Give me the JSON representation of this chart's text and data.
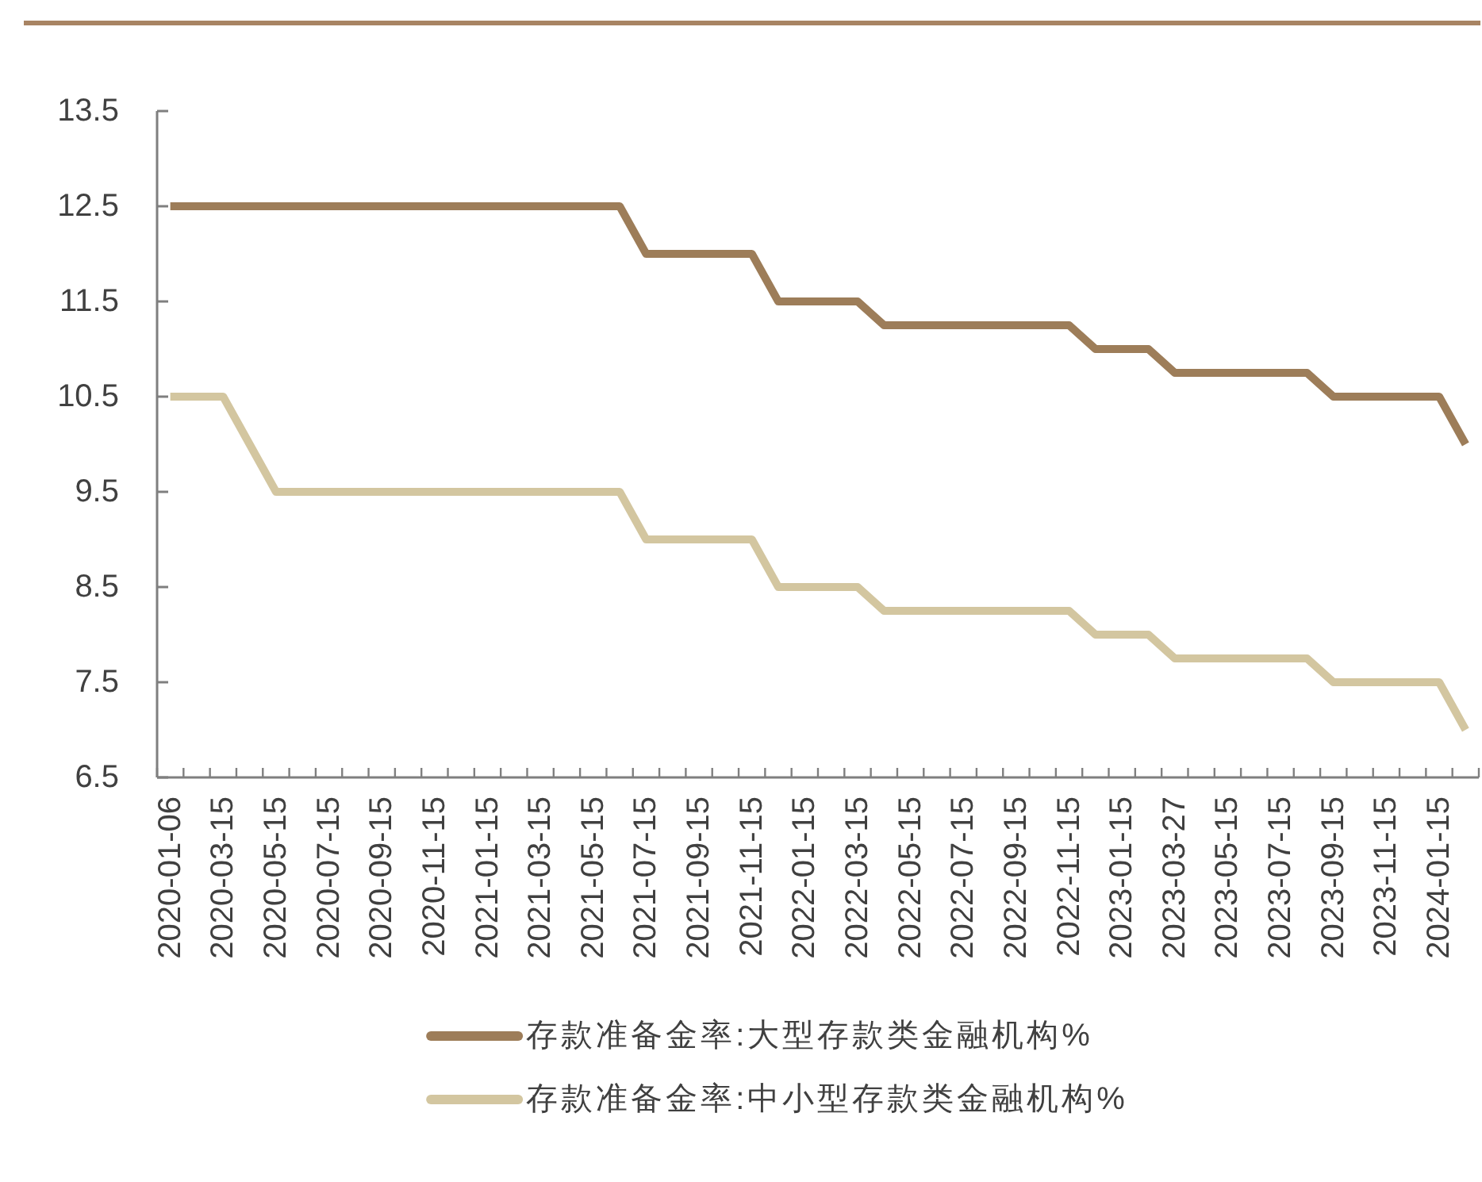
{
  "chart_data": {
    "type": "line",
    "categories": [
      "2020-01-06",
      null,
      "2020-03-15",
      null,
      "2020-05-15",
      null,
      "2020-07-15",
      null,
      "2020-09-15",
      null,
      "2020-11-15",
      null,
      "2021-01-15",
      null,
      "2021-03-15",
      null,
      "2021-05-15",
      null,
      "2021-07-15",
      null,
      "2021-09-15",
      null,
      "2021-11-15",
      null,
      "2022-01-15",
      null,
      "2022-03-15",
      null,
      "2022-05-15",
      null,
      "2022-07-15",
      null,
      "2022-09-15",
      null,
      "2022-11-15",
      null,
      "2023-01-15",
      null,
      "2023-03-27",
      null,
      "2023-05-15",
      null,
      "2023-07-15",
      null,
      "2023-09-15",
      null,
      "2023-11-15",
      null,
      "2024-01-15",
      null
    ],
    "series": [
      {
        "name": "存款准备金率:大型存款类金融机构%",
        "color": "#9d7d59",
        "values": [
          12.5,
          12.5,
          12.5,
          12.5,
          12.5,
          12.5,
          12.5,
          12.5,
          12.5,
          12.5,
          12.5,
          12.5,
          12.5,
          12.5,
          12.5,
          12.5,
          12.5,
          12.5,
          12.0,
          12.0,
          12.0,
          12.0,
          12.0,
          11.5,
          11.5,
          11.5,
          11.5,
          11.25,
          11.25,
          11.25,
          11.25,
          11.25,
          11.25,
          11.25,
          11.25,
          11.0,
          11.0,
          11.0,
          10.75,
          10.75,
          10.75,
          10.75,
          10.75,
          10.75,
          10.5,
          10.5,
          10.5,
          10.5,
          10.5,
          10.0
        ]
      },
      {
        "name": "存款准备金率:中小型存款类金融机构%",
        "color": "#d3c6a0",
        "values": [
          10.5,
          10.5,
          10.5,
          10.0,
          9.5,
          9.5,
          9.5,
          9.5,
          9.5,
          9.5,
          9.5,
          9.5,
          9.5,
          9.5,
          9.5,
          9.5,
          9.5,
          9.5,
          9.0,
          9.0,
          9.0,
          9.0,
          9.0,
          8.5,
          8.5,
          8.5,
          8.5,
          8.25,
          8.25,
          8.25,
          8.25,
          8.25,
          8.25,
          8.25,
          8.25,
          8.0,
          8.0,
          8.0,
          7.75,
          7.75,
          7.75,
          7.75,
          7.75,
          7.75,
          7.5,
          7.5,
          7.5,
          7.5,
          7.5,
          7.0
        ]
      }
    ],
    "ylim": [
      6.5,
      13.5
    ],
    "yticks": [
      6.5,
      7.5,
      8.5,
      9.5,
      10.5,
      11.5,
      12.5,
      13.5
    ],
    "legend": "bottom",
    "line_style": "solid"
  }
}
